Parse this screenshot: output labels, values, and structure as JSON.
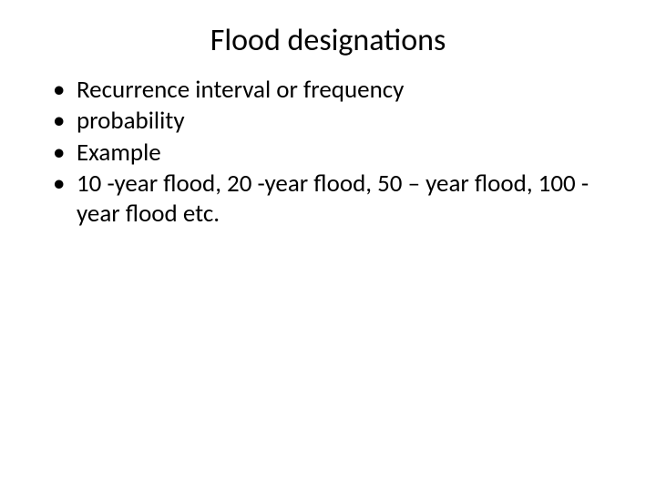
{
  "slide": {
    "title": "Flood designations",
    "bullets": [
      "Recurrence interval or frequency",
      "probability",
      "Example",
      "10 -year flood, 20 -year flood, 50 – year flood, 100 -year flood etc."
    ],
    "title_fontsize": 34,
    "body_fontsize": 27,
    "background_color": "#ffffff",
    "text_color": "#000000"
  }
}
